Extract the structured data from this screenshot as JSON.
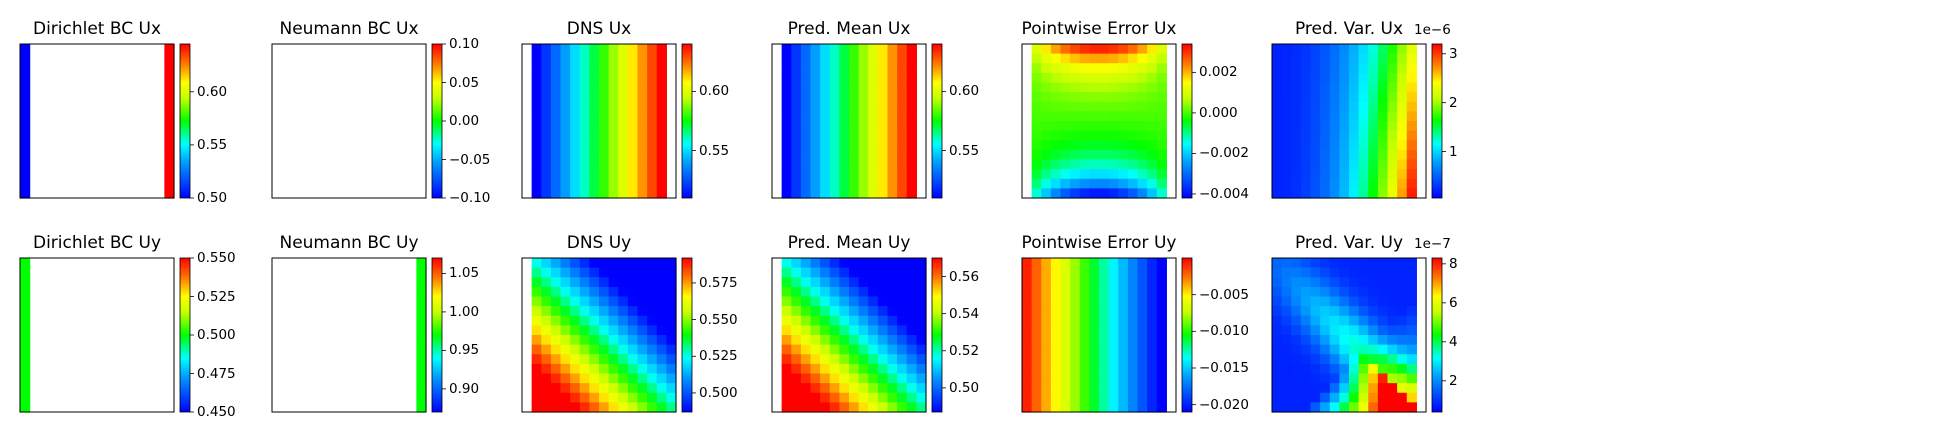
{
  "chart_data": [
    {
      "type": "heatmap",
      "title": "Dirichlet BC Ux",
      "grid_size": 16,
      "pattern": "dirichlet_ux",
      "field_range": [
        0.5,
        0.645
      ],
      "colorbar": {
        "range": [
          0.5,
          0.645
        ],
        "ticks": [
          "0.50",
          "0.55",
          "0.60"
        ],
        "tick_values": [
          0.5,
          0.55,
          0.6
        ],
        "exponent": ""
      }
    },
    {
      "type": "heatmap",
      "title": "Neumann BC Ux",
      "grid_size": 16,
      "pattern": "blank",
      "field_range": [
        -0.1,
        0.1
      ],
      "colorbar": {
        "range": [
          -0.1,
          0.1
        ],
        "ticks": [
          "0.10",
          "0.05",
          "0.00",
          "−0.05",
          "−0.10"
        ],
        "tick_values": [
          0.1,
          0.05,
          0.0,
          -0.05,
          -0.1
        ],
        "exponent": ""
      }
    },
    {
      "type": "heatmap",
      "title": "DNS Ux",
      "grid_size": 16,
      "pattern": "horizontal_gradient",
      "field_range": [
        0.51,
        0.64
      ],
      "colorbar": {
        "range": [
          0.51,
          0.64
        ],
        "ticks": [
          "0.60",
          "0.55"
        ],
        "tick_values": [
          0.6,
          0.55
        ],
        "exponent": ""
      }
    },
    {
      "type": "heatmap",
      "title": "Pred. Mean Ux",
      "grid_size": 16,
      "pattern": "horizontal_gradient",
      "field_range": [
        0.51,
        0.64
      ],
      "colorbar": {
        "range": [
          0.51,
          0.64
        ],
        "ticks": [
          "0.60",
          "0.55"
        ],
        "tick_values": [
          0.6,
          0.55
        ],
        "exponent": ""
      }
    },
    {
      "type": "heatmap",
      "title": "Pointwise Error Ux",
      "grid_size": 16,
      "pattern": "error_ux",
      "field_range": [
        -0.0042,
        0.0034
      ],
      "colorbar": {
        "range": [
          -0.0042,
          0.0034
        ],
        "ticks": [
          "0.002",
          "0.000",
          "−0.002",
          "−0.004"
        ],
        "tick_values": [
          0.002,
          0.0,
          -0.002,
          -0.004
        ],
        "exponent": ""
      }
    },
    {
      "type": "heatmap",
      "title": "Pred. Var. Ux",
      "grid_size": 16,
      "pattern": "var_ux",
      "field_range": [
        0.05,
        3.2
      ],
      "colorbar": {
        "range": [
          0.05,
          3.2
        ],
        "ticks": [
          "3",
          "2",
          "1"
        ],
        "tick_values": [
          3,
          2,
          1
        ],
        "exponent": "1e−6"
      }
    },
    {
      "type": "heatmap",
      "title": "Dirichlet BC Uy",
      "grid_size": 16,
      "pattern": "dirichlet_uy",
      "field_range": [
        0.45,
        0.55
      ],
      "colorbar": {
        "range": [
          0.45,
          0.55
        ],
        "ticks": [
          "0.550",
          "0.525",
          "0.500",
          "0.475",
          "0.450"
        ],
        "tick_values": [
          0.55,
          0.525,
          0.5,
          0.475,
          0.45
        ],
        "exponent": ""
      }
    },
    {
      "type": "heatmap",
      "title": "Neumann BC Uy",
      "grid_size": 16,
      "pattern": "neumann_uy",
      "field_range": [
        0.87,
        1.07
      ],
      "colorbar": {
        "range": [
          0.87,
          1.07
        ],
        "ticks": [
          "1.05",
          "1.00",
          "0.95",
          "0.90"
        ],
        "tick_values": [
          1.05,
          1.0,
          0.95,
          0.9
        ],
        "exponent": ""
      }
    },
    {
      "type": "heatmap",
      "title": "DNS Uy",
      "grid_size": 16,
      "pattern": "diagonal",
      "field_range": [
        0.487,
        0.592
      ],
      "colorbar": {
        "range": [
          0.487,
          0.592
        ],
        "ticks": [
          "0.575",
          "0.550",
          "0.525",
          "0.500"
        ],
        "tick_values": [
          0.575,
          0.55,
          0.525,
          0.5
        ],
        "exponent": ""
      }
    },
    {
      "type": "heatmap",
      "title": "Pred. Mean Uy",
      "grid_size": 16,
      "pattern": "diagonal",
      "field_range": [
        0.487,
        0.57
      ],
      "colorbar": {
        "range": [
          0.487,
          0.57
        ],
        "ticks": [
          "0.56",
          "0.54",
          "0.52",
          "0.50"
        ],
        "tick_values": [
          0.56,
          0.54,
          0.52,
          0.5
        ],
        "exponent": ""
      }
    },
    {
      "type": "heatmap",
      "title": "Pointwise Error Uy",
      "grid_size": 16,
      "pattern": "error_uy",
      "field_range": [
        -0.021,
        0.0
      ],
      "colorbar": {
        "range": [
          -0.021,
          0.0
        ],
        "ticks": [
          "−0.005",
          "−0.010",
          "−0.015",
          "−0.020"
        ],
        "tick_values": [
          -0.005,
          -0.01,
          -0.015,
          -0.02
        ],
        "exponent": ""
      }
    },
    {
      "type": "heatmap",
      "title": "Pred. Var. Uy",
      "grid_size": 16,
      "pattern": "var_uy",
      "field_range": [
        0.4,
        8.3
      ],
      "colorbar": {
        "range": [
          0.4,
          8.3
        ],
        "ticks": [
          "8",
          "6",
          "4",
          "2"
        ],
        "tick_values": [
          8,
          6,
          4,
          2
        ],
        "exponent": "1e−7"
      }
    }
  ]
}
